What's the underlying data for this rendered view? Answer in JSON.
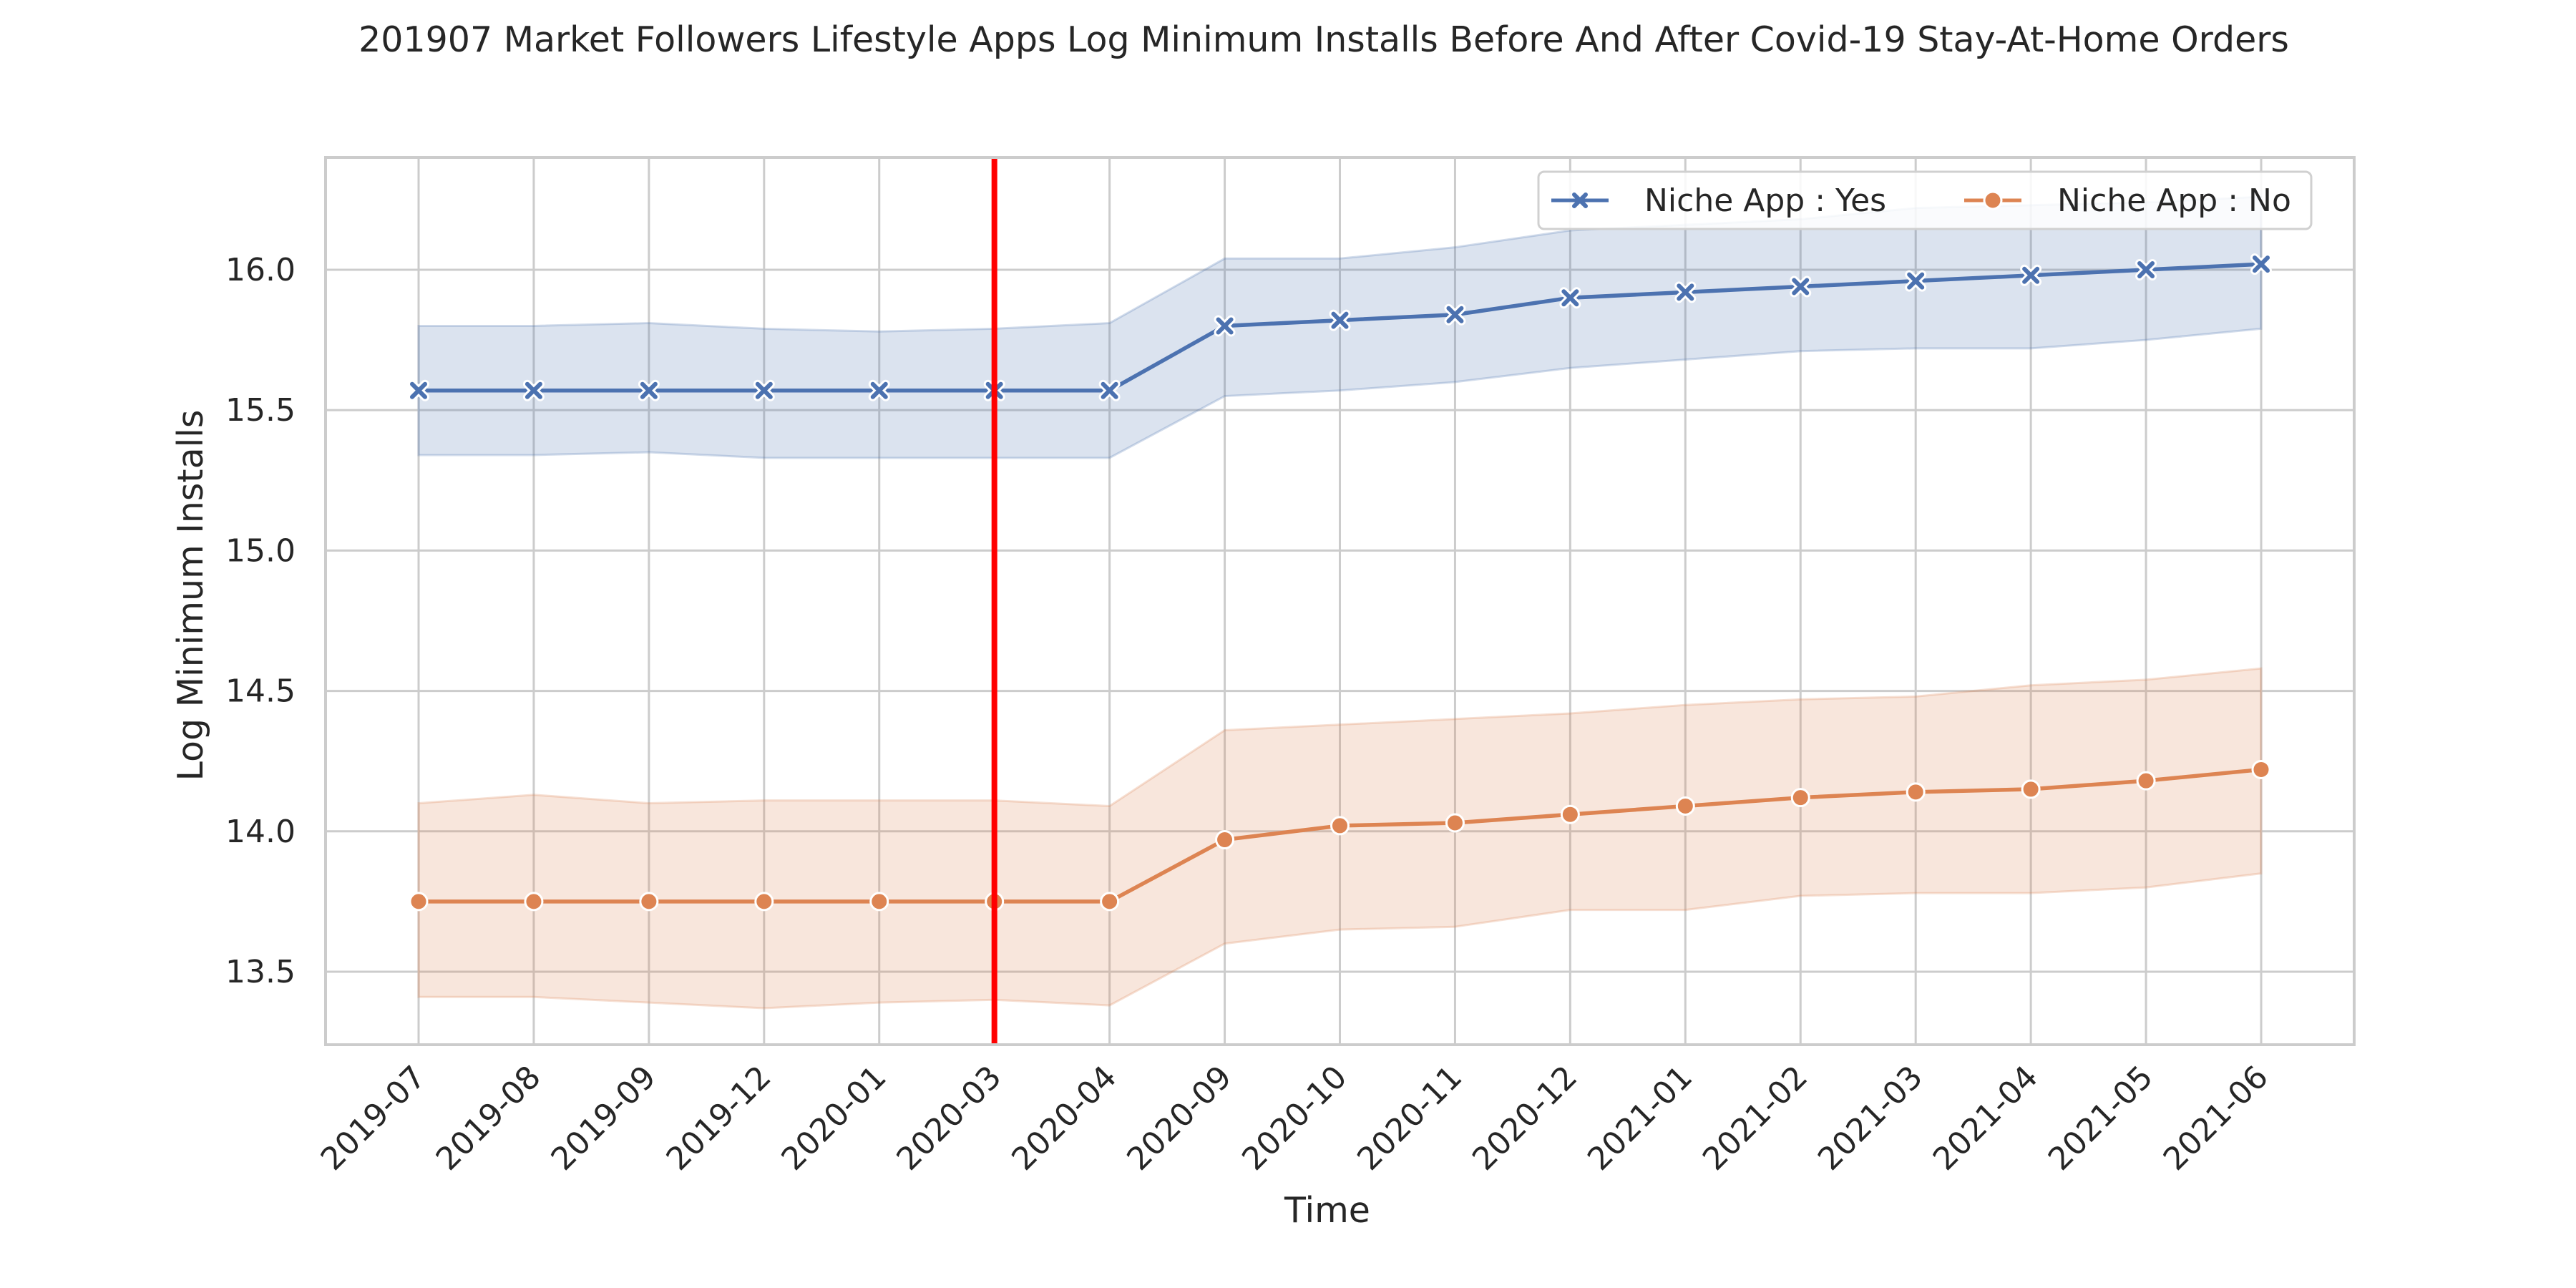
{
  "chart_data": {
    "type": "line",
    "title": "201907 Market Followers Lifestyle Apps Log Minimum Installs Before And After Covid-19 Stay-At-Home Orders",
    "xlabel": "Time",
    "ylabel": "Log Minimum Installs",
    "categories": [
      "2019-07",
      "2019-08",
      "2019-09",
      "2019-12",
      "2020-01",
      "2020-03",
      "2020-04",
      "2020-09",
      "2020-10",
      "2020-11",
      "2020-12",
      "2021-01",
      "2021-02",
      "2021-03",
      "2021-04",
      "2021-05",
      "2021-06"
    ],
    "ylim": [
      13.24,
      16.4
    ],
    "yticks": [
      "13.5",
      "14.0",
      "14.5",
      "15.0",
      "15.5",
      "16.0"
    ],
    "grid": true,
    "legend_position": "upper right",
    "vertical_line": {
      "category": "2020-03",
      "color": "#ff0000"
    },
    "series": [
      {
        "name": "Niche App : Yes",
        "color": "#4c72b0",
        "marker": "x",
        "values": [
          15.57,
          15.57,
          15.57,
          15.57,
          15.57,
          15.57,
          15.57,
          15.8,
          15.82,
          15.84,
          15.9,
          15.92,
          15.94,
          15.96,
          15.98,
          16.0,
          16.02
        ],
        "ci_low": [
          15.34,
          15.34,
          15.35,
          15.33,
          15.33,
          15.33,
          15.33,
          15.55,
          15.57,
          15.6,
          15.65,
          15.68,
          15.71,
          15.72,
          15.72,
          15.75,
          15.79
        ],
        "ci_high": [
          15.8,
          15.8,
          15.81,
          15.79,
          15.78,
          15.79,
          15.81,
          16.04,
          16.04,
          16.08,
          16.14,
          16.16,
          16.18,
          16.22,
          16.23,
          16.24,
          16.26
        ]
      },
      {
        "name": "Niche App : No",
        "color": "#dd8452",
        "marker": "o",
        "values": [
          13.75,
          13.75,
          13.75,
          13.75,
          13.75,
          13.75,
          13.75,
          13.97,
          14.02,
          14.03,
          14.06,
          14.09,
          14.12,
          14.14,
          14.15,
          14.18,
          14.22
        ],
        "ci_low": [
          13.41,
          13.41,
          13.39,
          13.37,
          13.39,
          13.4,
          13.38,
          13.6,
          13.65,
          13.66,
          13.72,
          13.72,
          13.77,
          13.78,
          13.78,
          13.8,
          13.85
        ],
        "ci_high": [
          14.1,
          14.13,
          14.1,
          14.11,
          14.11,
          14.11,
          14.09,
          14.36,
          14.38,
          14.4,
          14.42,
          14.45,
          14.47,
          14.48,
          14.52,
          14.54,
          14.58
        ]
      }
    ]
  }
}
